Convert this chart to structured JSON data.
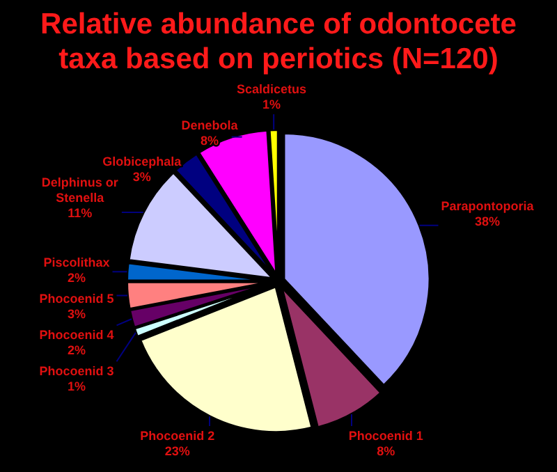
{
  "chart_data": {
    "type": "pie",
    "title": "Relative abundance of odontocete taxa based on periotics (N=120)",
    "categories": [
      "Parapontoporia",
      "Phocoenid 1",
      "Phocoenid 2",
      "Phocoenid 3",
      "Phocoenid 4",
      "Phocoenid 5",
      "Piscolithax",
      "Delphinus or Stenella",
      "Globicephala",
      "Denebola",
      "Scaldicetus"
    ],
    "values": [
      38,
      8,
      23,
      1,
      2,
      3,
      2,
      11,
      3,
      8,
      1
    ],
    "value_labels": [
      "38%",
      "8%",
      "23%",
      "1%",
      "2%",
      "3%",
      "2%",
      "11%",
      "3%",
      "8%",
      "1%"
    ],
    "colors": [
      "#9999ff",
      "#993366",
      "#ffffcc",
      "#ccffff",
      "#660066",
      "#ff8080",
      "#0066cc",
      "#ccccff",
      "#000080",
      "#ff00ff",
      "#ffff00"
    ],
    "legend": false
  }
}
